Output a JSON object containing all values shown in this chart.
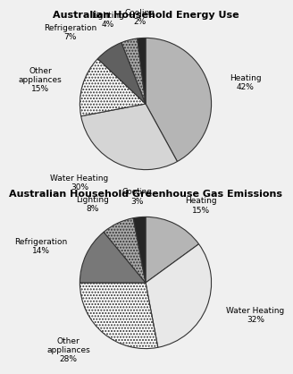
{
  "chart1_title": "Australian Household Energy Use",
  "chart2_title": "Australian Household Greenhouse Gas Emissions",
  "chart1_values": [
    42,
    30,
    15,
    7,
    4,
    2
  ],
  "chart1_labels": [
    "Heating\n42%",
    "Water Heating\n30%",
    "Other\nappliances\n15%",
    "Refrigeration\n7%",
    "Lighting\n4%",
    "Cooling\n2%"
  ],
  "chart2_values": [
    15,
    32,
    28,
    14,
    8,
    3
  ],
  "chart2_labels": [
    "Heating\n15%",
    "Water Heating\n32%",
    "Other\nappliances\n28%",
    "Refrigeration\n14%",
    "Lighting\n8%",
    "Cooling\n3%"
  ],
  "chart1_colors": [
    "#b8b8b8",
    "#d8d8d8",
    "#e8e8e8",
    "#707070",
    "#b0b0b0",
    "#303030"
  ],
  "chart1_hatches": [
    "",
    "",
    "..",
    "",
    "..",
    ""
  ],
  "chart2_colors": [
    "#b8b8b8",
    "#e0e0e0",
    "#d0d0d0",
    "#808080",
    "#b0b0b0",
    "#303030"
  ],
  "chart2_hatches": [
    "",
    "",
    "..",
    "",
    "..",
    ""
  ],
  "bg_color": "#f0f0f0",
  "title_fontsize": 8,
  "label_fontsize": 6.5
}
